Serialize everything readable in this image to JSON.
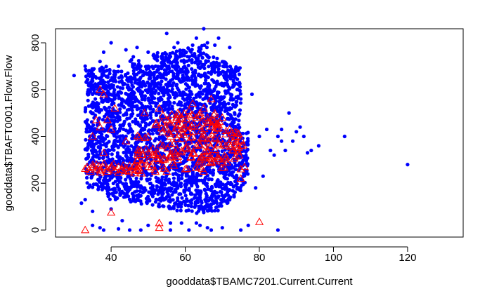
{
  "chart_data": {
    "type": "scatter",
    "title": "",
    "xlabel": "gooddata$TBAMC7201.Current.Current",
    "ylabel": "gooddata$TBAFT0001.Flow.Flow",
    "xlim": [
      25,
      135
    ],
    "ylim": [
      -30,
      860
    ],
    "xticks": [
      40,
      60,
      80,
      100,
      120
    ],
    "yticks": [
      0,
      200,
      400,
      600,
      800
    ],
    "xtick_labels": [
      "40",
      "60",
      "80",
      "100",
      "120"
    ],
    "ytick_labels": [
      "0",
      "200",
      "400",
      "600",
      "800"
    ],
    "grid": false,
    "legend": "none",
    "series": [
      {
        "marker": "filled-circle",
        "color": "#0000ff",
        "points": [
          [
            30,
            660
          ],
          [
            32,
            115
          ],
          [
            33,
            130
          ],
          [
            33,
            700
          ],
          [
            34,
            660
          ],
          [
            35,
            580
          ],
          [
            35,
            80
          ],
          [
            35,
            20
          ],
          [
            36,
            650
          ],
          [
            37,
            720
          ],
          [
            38,
            760
          ],
          [
            38,
            0
          ],
          [
            39,
            500
          ],
          [
            40,
            800
          ],
          [
            40,
            90
          ],
          [
            41,
            420
          ],
          [
            42,
            700
          ],
          [
            43,
            40
          ],
          [
            44,
            770
          ],
          [
            45,
            0
          ],
          [
            46,
            740
          ],
          [
            47,
            780
          ],
          [
            48,
            700
          ],
          [
            50,
            760
          ],
          [
            51,
            600
          ],
          [
            52,
            700
          ],
          [
            53,
            100
          ],
          [
            54,
            720
          ],
          [
            55,
            840
          ],
          [
            56,
            0
          ],
          [
            57,
            780
          ],
          [
            58,
            800
          ],
          [
            59,
            30
          ],
          [
            60,
            760
          ],
          [
            61,
            0
          ],
          [
            62,
            790
          ],
          [
            63,
            820
          ],
          [
            64,
            20
          ],
          [
            65,
            860
          ],
          [
            66,
            800
          ],
          [
            67,
            0
          ],
          [
            68,
            790
          ],
          [
            69,
            820
          ],
          [
            70,
            10
          ],
          [
            72,
            780
          ],
          [
            73,
            640
          ],
          [
            74,
            600
          ],
          [
            75,
            560
          ],
          [
            76,
            300
          ],
          [
            77,
            20
          ],
          [
            78,
            580
          ],
          [
            79,
            180
          ],
          [
            80,
            400
          ],
          [
            81,
            230
          ],
          [
            82,
            430
          ],
          [
            83,
            340
          ],
          [
            84,
            320
          ],
          [
            85,
            400
          ],
          [
            86,
            430
          ],
          [
            86,
            380
          ],
          [
            87,
            340
          ],
          [
            88,
            500
          ],
          [
            89,
            380
          ],
          [
            90,
            420
          ],
          [
            91,
            440
          ],
          [
            92,
            400
          ],
          [
            93,
            330
          ],
          [
            94,
            340
          ],
          [
            96,
            360
          ],
          [
            103,
            400
          ],
          [
            120,
            280
          ],
          [
            85,
            0
          ],
          [
            75,
            0
          ],
          [
            66,
            10
          ],
          [
            48,
            0
          ],
          [
            42,
            5
          ],
          [
            37,
            10
          ],
          [
            50,
            20
          ],
          [
            56,
            30
          ],
          [
            63,
            30
          ]
        ],
        "bands": [
          {
            "x": [
              33,
              36
            ],
            "y": [
              180,
              690
            ]
          },
          {
            "x": [
              36,
              39
            ],
            "y": [
              170,
              700
            ]
          },
          {
            "x": [
              39,
              42
            ],
            "y": [
              130,
              700
            ]
          },
          {
            "x": [
              42,
              45
            ],
            "y": [
              140,
              680
            ]
          },
          {
            "x": [
              45,
              48
            ],
            "y": [
              120,
              730
            ]
          },
          {
            "x": [
              48,
              51
            ],
            "y": [
              110,
              700
            ]
          },
          {
            "x": [
              51,
              54
            ],
            "y": [
              100,
              760
            ]
          },
          {
            "x": [
              54,
              57
            ],
            "y": [
              90,
              760
            ]
          },
          {
            "x": [
              57,
              60
            ],
            "y": [
              80,
              770
            ]
          },
          {
            "x": [
              60,
              63
            ],
            "y": [
              80,
              780
            ]
          },
          {
            "x": [
              63,
              66
            ],
            "y": [
              70,
              790
            ]
          },
          {
            "x": [
              66,
              69
            ],
            "y": [
              80,
              740
            ]
          },
          {
            "x": [
              69,
              72
            ],
            "y": [
              100,
              720
            ]
          },
          {
            "x": [
              72,
              75
            ],
            "y": [
              140,
              700
            ]
          },
          {
            "x": [
              75,
              77
            ],
            "y": [
              190,
              420
            ]
          }
        ]
      },
      {
        "marker": "open-triangle",
        "color": "#ff0000",
        "points": [
          [
            33,
            0
          ],
          [
            40,
            75
          ],
          [
            53,
            30
          ],
          [
            53,
            10
          ],
          [
            80,
            35
          ],
          [
            37,
            600
          ],
          [
            38,
            580
          ],
          [
            35,
            400
          ],
          [
            36,
            470
          ],
          [
            37,
            440
          ],
          [
            38,
            330
          ],
          [
            39,
            470
          ],
          [
            40,
            430
          ],
          [
            41,
            520
          ],
          [
            44,
            380
          ],
          [
            48,
            340
          ],
          [
            49,
            500
          ],
          [
            50,
            400
          ],
          [
            52,
            450
          ],
          [
            53,
            520
          ],
          [
            54,
            490
          ],
          [
            55,
            470
          ],
          [
            56,
            400
          ],
          [
            57,
            420
          ],
          [
            58,
            500
          ],
          [
            59,
            450
          ],
          [
            60,
            440
          ],
          [
            61,
            510
          ],
          [
            62,
            540
          ],
          [
            63,
            480
          ],
          [
            64,
            500
          ],
          [
            65,
            520
          ],
          [
            66,
            480
          ],
          [
            67,
            560
          ],
          [
            68,
            460
          ],
          [
            69,
            450
          ],
          [
            70,
            480
          ],
          [
            71,
            410
          ],
          [
            72,
            430
          ],
          [
            73,
            380
          ],
          [
            74,
            400
          ],
          [
            75,
            260
          ],
          [
            76,
            270
          ],
          [
            75,
            220
          ],
          [
            55,
            250
          ],
          [
            60,
            260
          ],
          [
            65,
            250
          ],
          [
            70,
            290
          ],
          [
            68,
            320
          ],
          [
            66,
            340
          ],
          [
            64,
            300
          ],
          [
            62,
            330
          ],
          [
            58,
            340
          ],
          [
            56,
            310
          ],
          [
            54,
            300
          ],
          [
            52,
            320
          ],
          [
            51,
            280
          ],
          [
            50,
            270
          ],
          [
            49,
            300
          ],
          [
            47,
            260
          ],
          [
            46,
            270
          ],
          [
            45,
            255
          ],
          [
            44,
            265
          ],
          [
            43,
            260
          ],
          [
            42,
            270
          ],
          [
            41,
            255
          ],
          [
            40,
            265
          ],
          [
            39,
            260
          ],
          [
            38,
            270
          ],
          [
            37,
            255
          ],
          [
            36,
            260
          ],
          [
            35,
            265
          ],
          [
            34,
            258
          ],
          [
            33,
            262
          ],
          [
            36,
            280
          ],
          [
            39,
            250
          ],
          [
            42,
            245
          ],
          [
            45,
            275
          ],
          [
            48,
            285
          ],
          [
            61,
            380
          ],
          [
            63,
            360
          ],
          [
            67,
            390
          ],
          [
            69,
            370
          ],
          [
            71,
            360
          ],
          [
            73,
            340
          ],
          [
            74,
            350
          ],
          [
            57,
            370
          ],
          [
            59,
            390
          ],
          [
            62,
            400
          ],
          [
            65,
            410
          ],
          [
            68,
            395
          ],
          [
            60,
            350
          ],
          [
            58,
            300
          ],
          [
            54,
            360
          ],
          [
            50,
            330
          ],
          [
            47,
            300
          ]
        ],
        "bands": [
          {
            "x": [
              33,
              48
            ],
            "y": [
              240,
              285
            ]
          },
          {
            "x": [
              47,
              52
            ],
            "y": [
              240,
              420
            ]
          },
          {
            "x": [
              52,
              72
            ],
            "y": [
              260,
              470
            ]
          },
          {
            "x": [
              56,
              70
            ],
            "y": [
              300,
              500
            ]
          },
          {
            "x": [
              72,
              76
            ],
            "y": [
              300,
              420
            ]
          }
        ]
      }
    ]
  }
}
